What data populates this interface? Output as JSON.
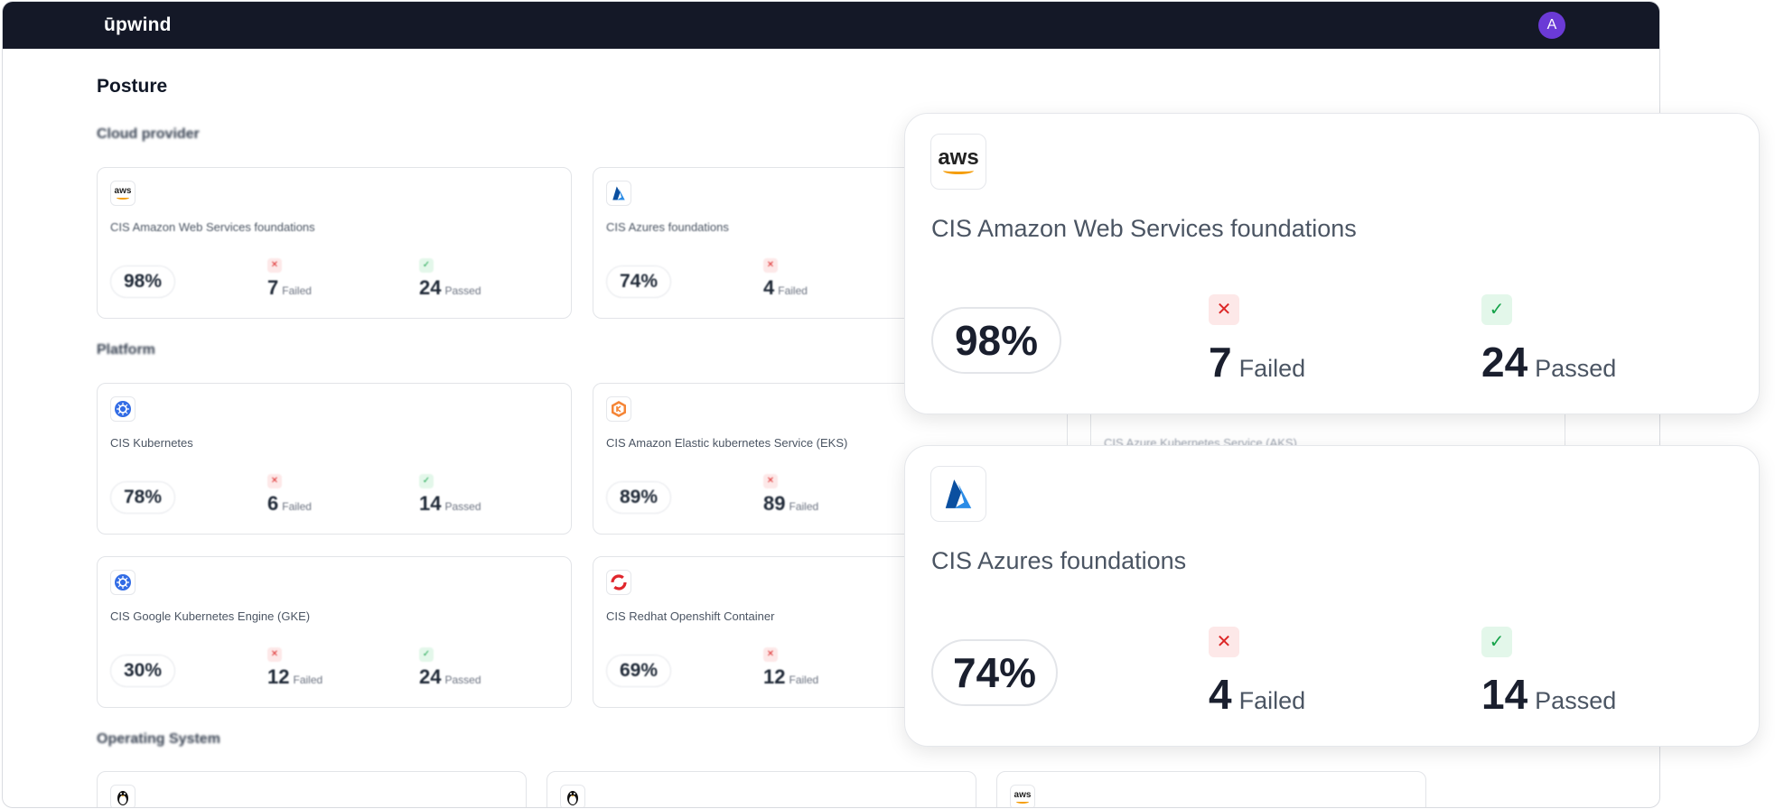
{
  "app": {
    "logo": "ūpwind",
    "avatar_initial": "A"
  },
  "page": {
    "title": "Posture"
  },
  "sections": {
    "cloud": "Cloud provider",
    "platform": "Platform",
    "os": "Operating System"
  },
  "cloud_cards": [
    {
      "icon": "aws-icon",
      "name": "CIS Amazon Web Services foundations",
      "percent": "98%",
      "failed": "7",
      "passed": "24"
    },
    {
      "icon": "azure-icon",
      "name": "CIS Azures foundations",
      "percent": "74%",
      "failed": "4"
    }
  ],
  "platform_cards": [
    {
      "icon": "kubernetes-icon",
      "name": "CIS Kubernetes",
      "percent": "78%",
      "failed": "6",
      "passed": "14"
    },
    {
      "icon": "eks-icon",
      "name": "CIS Amazon Elastic kubernetes Service (EKS)",
      "percent": "89%",
      "failed": "89"
    },
    {
      "icon": "kubernetes-icon",
      "name": "CIS Google Kubernetes Engine (GKE)",
      "percent": "30%",
      "failed": "12",
      "passed": "24"
    },
    {
      "icon": "openshift-icon",
      "name": "CIS Redhat Openshift Container",
      "percent": "69%",
      "failed": "12"
    }
  ],
  "aks_card": {
    "name": "CIS Azure Kubernetes Service (AKS)"
  },
  "os_cards": [
    {
      "icon": "linux-icon"
    },
    {
      "icon": "linux-icon"
    },
    {
      "icon": "aws-icon"
    }
  ],
  "labels": {
    "failed": "Failed",
    "passed": "Passed",
    "fail_mark": "✕",
    "pass_mark": "✓",
    "aws": "aws"
  },
  "overlays": [
    {
      "icon": "aws-icon",
      "name": "CIS Amazon Web Services foundations",
      "percent": "98%",
      "failed": "7",
      "passed": "24"
    },
    {
      "icon": "azure-icon",
      "name": "CIS Azures foundations",
      "percent": "74%",
      "failed": "4",
      "passed": "14"
    }
  ],
  "colors": {
    "topbar": "#141827",
    "avatar": "#6b3ad6",
    "fail": "#dc2626",
    "pass": "#16a34a",
    "aws_orange": "#f59e0b",
    "azure_blue": "#0078d4"
  }
}
